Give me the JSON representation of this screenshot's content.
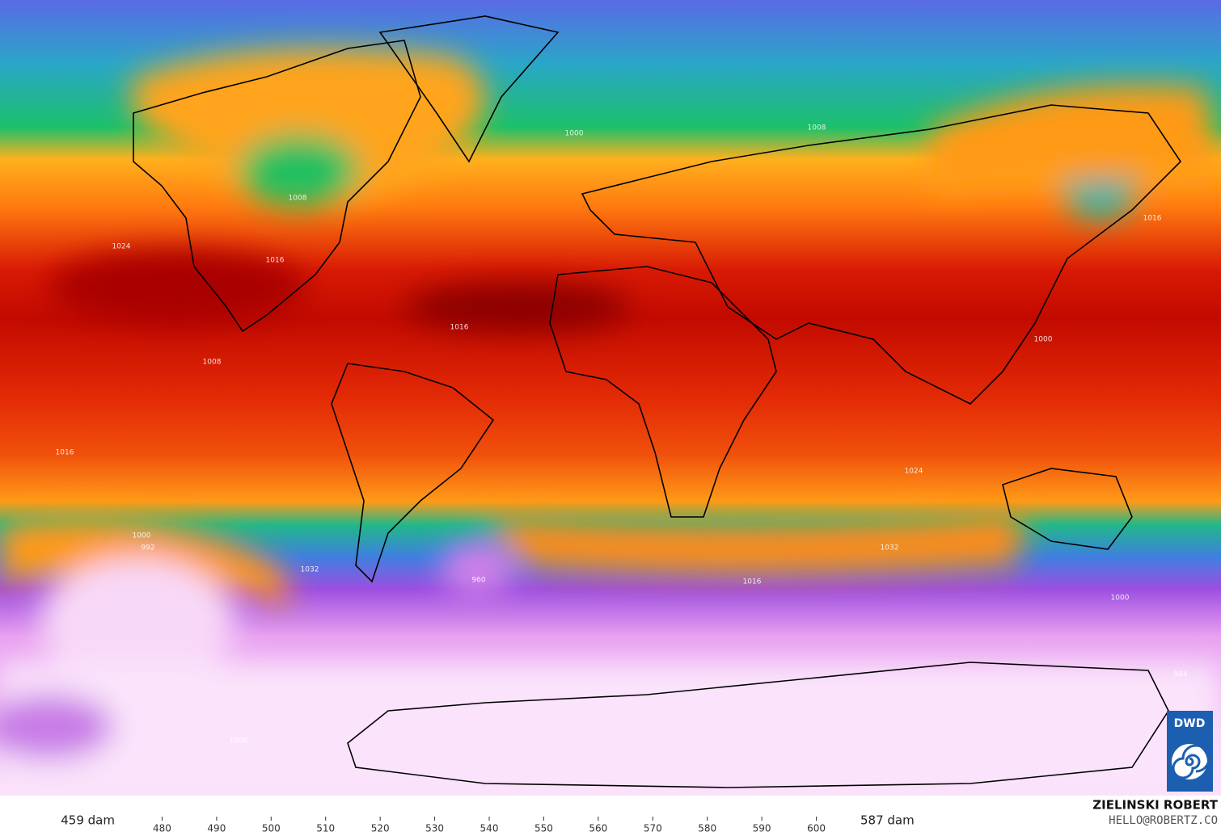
{
  "map": {
    "isobar_labels": [
      1008,
      1016,
      1024,
      1016,
      1000,
      1008,
      1016,
      1000,
      1008,
      1016,
      1024,
      1032,
      1000,
      992,
      960,
      1032,
      1016,
      1000,
      984,
      1008
    ]
  },
  "colorbar": {
    "min_label": "459 dam",
    "max_label": "587 dam",
    "range": [
      474,
      606
    ],
    "ticks": [
      480,
      490,
      500,
      510,
      520,
      530,
      540,
      550,
      560,
      570,
      580,
      590,
      600
    ],
    "colors": [
      "#ffffff",
      "#f2b8f2",
      "#c77ae6",
      "#9c4fe0",
      "#6a5ae8",
      "#3f7fe0",
      "#1fb3a8",
      "#18c060",
      "#ffd23a",
      "#ff8c12",
      "#e82a08",
      "#b80000",
      "#6a0000",
      "#000000"
    ]
  },
  "credits": {
    "author": "ZIELINSKI ROBERT",
    "contact": "HELLO@ROBERTZ.CO",
    "logo": "DWD"
  }
}
